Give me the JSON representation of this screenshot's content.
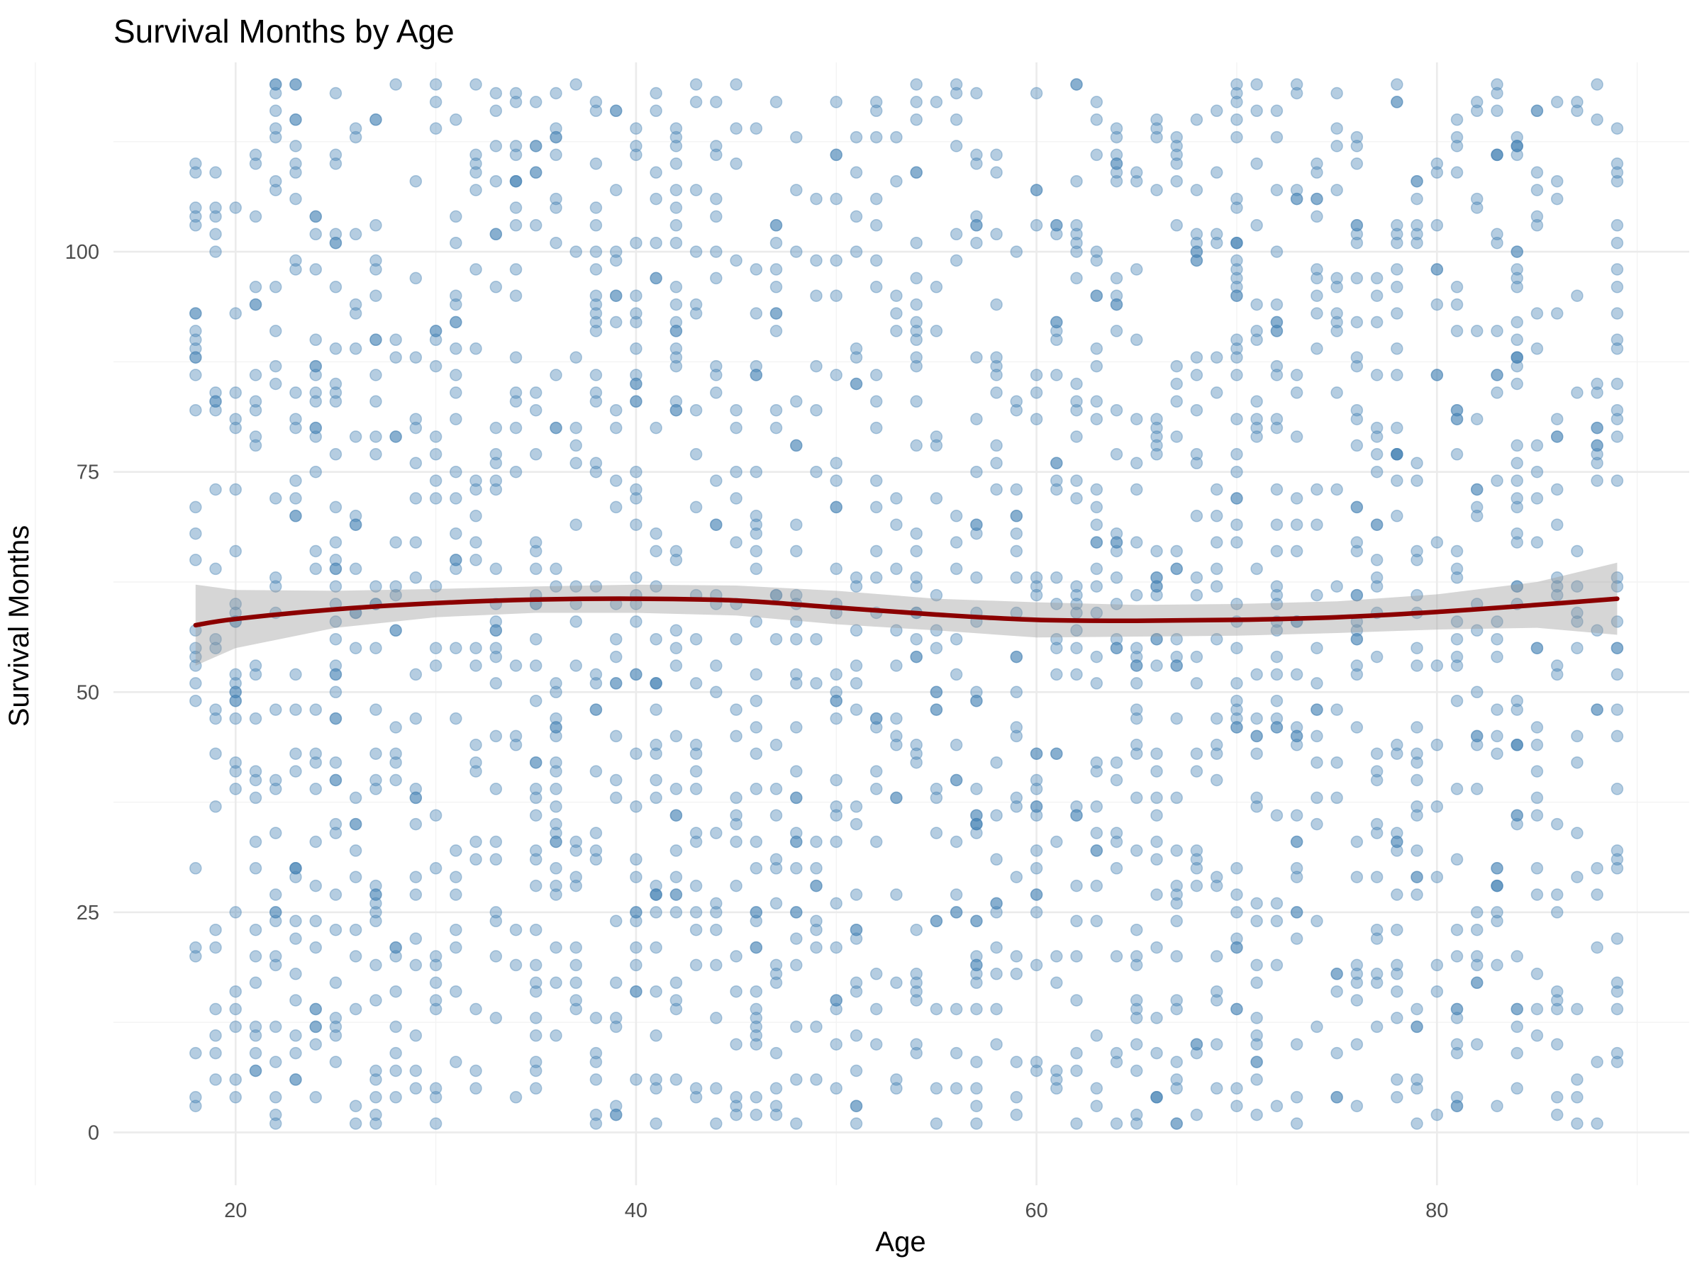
{
  "chart_data": {
    "type": "scatter",
    "title": "Survival Months by Age",
    "xlabel": "Age",
    "ylabel": "Survival Months",
    "xlim": [
      13.9,
      92.6
    ],
    "ylim": [
      -6,
      121.5
    ],
    "x_ticks": [
      20,
      40,
      60,
      80
    ],
    "y_ticks": [
      0,
      25,
      50,
      75,
      100
    ],
    "grid": true,
    "legend": "none",
    "colors": {
      "points": "#4682b4",
      "smooth": "#8b0000",
      "band": "#999999"
    },
    "point_alpha": 0.4,
    "series": [
      {
        "kind": "points",
        "x_range": [
          18,
          89
        ],
        "y_range": [
          1,
          119
        ],
        "n_points": 2000,
        "seed": 7
      },
      {
        "kind": "smooth",
        "x": [
          18,
          20,
          25,
          30,
          35,
          40,
          45,
          50,
          55,
          60,
          65,
          70,
          75,
          80,
          85,
          89
        ],
        "y": [
          57.6,
          58.3,
          59.4,
          60.1,
          60.5,
          60.6,
          60.4,
          59.6,
          58.8,
          58.2,
          58.1,
          58.2,
          58.5,
          59.1,
          59.9,
          60.6
        ],
        "lower": [
          53.0,
          55.0,
          57.3,
          58.5,
          59.0,
          59.0,
          58.7,
          57.7,
          57.0,
          56.2,
          56.3,
          56.4,
          56.7,
          57.1,
          57.3,
          56.5
        ],
        "upper": [
          62.2,
          61.6,
          61.5,
          61.7,
          62.0,
          62.2,
          62.1,
          61.5,
          60.6,
          60.2,
          59.9,
          60.0,
          60.3,
          61.1,
          62.5,
          64.7
        ]
      }
    ]
  }
}
